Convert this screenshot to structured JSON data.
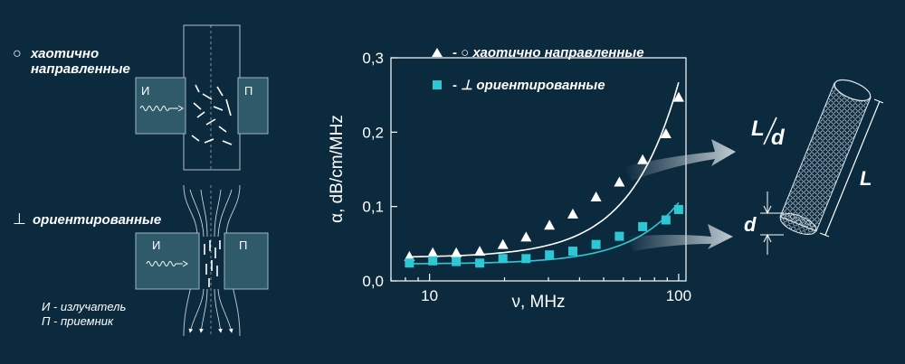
{
  "left_panel": {
    "top_label_symbol": "○",
    "top_label_line1": "хаотично",
    "top_label_line2": "направленные",
    "bottom_label_symbol": "⊥",
    "bottom_label": "ориентированные",
    "emitter_box_label": "И",
    "receiver_box_label": "П",
    "legend_line1": "И - излучатель",
    "legend_line2": "П - приемник"
  },
  "tube_diagram": {
    "length_label": "L",
    "diameter_label": "d",
    "ratio_num": "L",
    "ratio_den": "d"
  },
  "colors": {
    "background": "#0b2a3e",
    "chamber": "#2f5a6a",
    "series_triangle": "#ffffff",
    "series_square": "#2ec8d4"
  },
  "chart_data": {
    "type": "scatter",
    "xlabel": "ν, MHz",
    "ylabel": "α, dB/cm/MHz",
    "xscale": "log",
    "xlim": [
      7,
      107
    ],
    "ylim": [
      0,
      0.3
    ],
    "xticks": [
      10,
      100
    ],
    "xtick_labels": [
      "10",
      "100"
    ],
    "yticks": [
      0,
      0.1,
      0.2,
      0.3
    ],
    "ytick_labels": [
      "0,0",
      "0,1",
      "0,2",
      "0,3"
    ],
    "grid": false,
    "legend_position": "top",
    "series": [
      {
        "name": "- ○ хаотично направленные",
        "marker": "triangle",
        "color": "#ffffff",
        "x": [
          8.3,
          10.3,
          12.8,
          15.9,
          19.7,
          24.4,
          30.3,
          37.6,
          46.6,
          57.8,
          71.7,
          88.9,
          100
        ],
        "y": [
          0.033,
          0.038,
          0.038,
          0.04,
          0.049,
          0.059,
          0.075,
          0.09,
          0.113,
          0.133,
          0.163,
          0.198,
          0.247
        ]
      },
      {
        "name": "- ⊥ ориентированные",
        "marker": "square",
        "color": "#2ec8d4",
        "x": [
          8.3,
          10.3,
          12.8,
          15.9,
          19.7,
          24.4,
          30.3,
          37.6,
          46.6,
          57.8,
          71.7,
          88.9,
          100
        ],
        "y": [
          0.024,
          0.027,
          0.026,
          0.024,
          0.03,
          0.03,
          0.035,
          0.04,
          0.049,
          0.06,
          0.073,
          0.082,
          0.096
        ]
      }
    ]
  }
}
